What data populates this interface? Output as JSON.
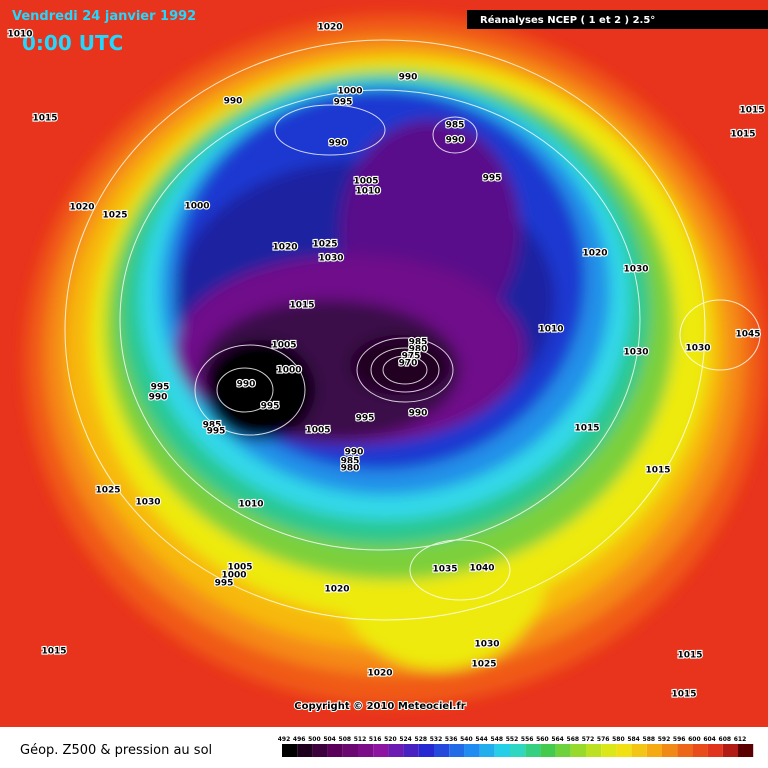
{
  "header": {
    "date": "Vendredi 24 janvier 1992",
    "time": "0:00 UTC",
    "source": "Réanalyses NCEP ( 1 et 2 ) 2.5°"
  },
  "copyright": "Copyright © 2010 Meteociel.fr",
  "isobar_labels": [
    1020,
    1010,
    990,
    1000,
    995,
    990,
    1015,
    985,
    990,
    990,
    995,
    1005,
    1010,
    1020,
    1025,
    1000,
    1020,
    1025,
    1030,
    1020,
    1030,
    1015,
    1010,
    1005,
    985,
    980,
    975,
    970,
    1000,
    1030,
    1045,
    1030,
    995,
    990,
    990,
    995,
    995,
    990,
    1005,
    985,
    995,
    1015,
    990,
    985,
    980,
    1015,
    1025,
    1030,
    1010,
    1005,
    1000,
    995,
    1035,
    1040,
    1020,
    1030,
    1025,
    1020,
    1015,
    1015,
    1015,
    1015,
    1015
  ],
  "legend": {
    "title": "Géop. Z500 & pression au sol",
    "scale": [
      492,
      496,
      500,
      504,
      508,
      512,
      516,
      520,
      524,
      528,
      532,
      536,
      540,
      544,
      548,
      552,
      556,
      560,
      564,
      568,
      572,
      576,
      580,
      584,
      588,
      592,
      596,
      600,
      604,
      608,
      612
    ]
  }
}
